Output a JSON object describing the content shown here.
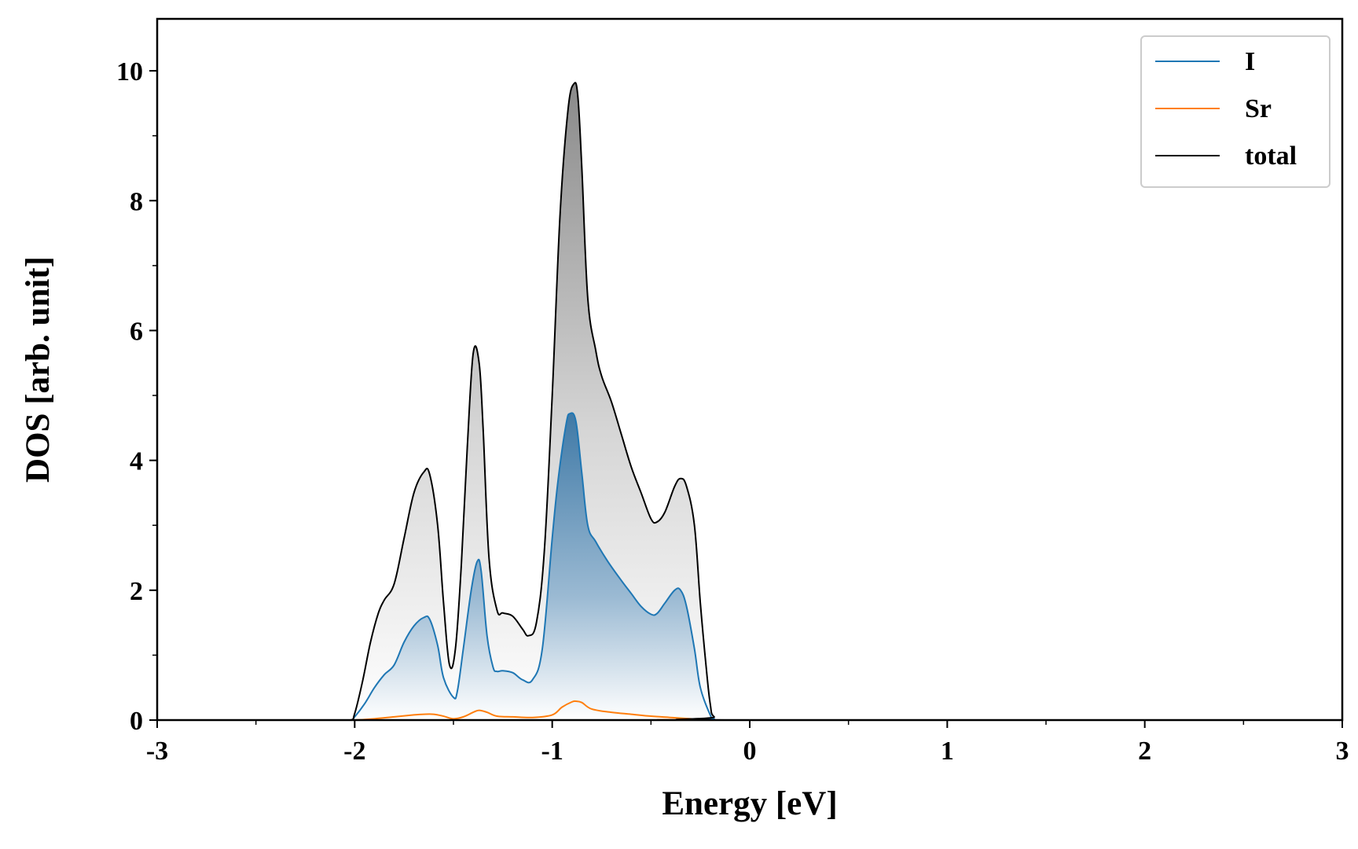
{
  "chart_data": {
    "type": "area",
    "title": "",
    "xlabel": "Energy [eV]",
    "ylabel": "DOS [arb. unit]",
    "xlim": [
      -3,
      3
    ],
    "ylim": [
      0,
      10.8
    ],
    "xticks": [
      -3,
      -2,
      -1,
      0,
      1,
      2,
      3
    ],
    "xtick_labels": [
      "-3",
      "-2",
      "-1",
      "0",
      "1",
      "2",
      "3"
    ],
    "yticks": [
      0,
      2,
      4,
      6,
      8,
      10
    ],
    "ytick_labels": [
      "0",
      "2",
      "4",
      "6",
      "8",
      "10"
    ],
    "grid": false,
    "legend_position": "top-right",
    "series": [
      {
        "name": "I",
        "color": "#1f77b4",
        "fill": "blue-gradient",
        "x": [
          -2.1,
          -2.02,
          -2.0,
          -1.95,
          -1.9,
          -1.85,
          -1.8,
          -1.75,
          -1.7,
          -1.65,
          -1.62,
          -1.58,
          -1.55,
          -1.5,
          -1.48,
          -1.45,
          -1.41,
          -1.38,
          -1.36,
          -1.33,
          -1.3,
          -1.28,
          -1.25,
          -1.2,
          -1.15,
          -1.1,
          -1.05,
          -1.0,
          -0.97,
          -0.93,
          -0.91,
          -0.88,
          -0.85,
          -0.82,
          -0.78,
          -0.72,
          -0.65,
          -0.6,
          -0.55,
          -0.5,
          -0.47,
          -0.43,
          -0.38,
          -0.35,
          -0.32,
          -0.28,
          -0.25,
          -0.2,
          -0.18,
          -0.1,
          3.0
        ],
        "y": [
          0,
          0,
          0.05,
          0.25,
          0.5,
          0.7,
          0.85,
          1.2,
          1.45,
          1.58,
          1.55,
          1.15,
          0.65,
          0.35,
          0.45,
          1.1,
          2.0,
          2.44,
          2.3,
          1.3,
          0.82,
          0.75,
          0.76,
          0.73,
          0.62,
          0.62,
          1.1,
          2.8,
          3.7,
          4.55,
          4.72,
          4.6,
          3.8,
          3.0,
          2.75,
          2.45,
          2.15,
          1.95,
          1.75,
          1.63,
          1.64,
          1.8,
          2.0,
          2.0,
          1.75,
          1.1,
          0.5,
          0.08,
          0.02,
          0,
          0
        ]
      },
      {
        "name": "Sr",
        "color": "#ff7f0e",
        "x": [
          -2.1,
          -2.0,
          -1.9,
          -1.8,
          -1.7,
          -1.65,
          -1.6,
          -1.55,
          -1.5,
          -1.45,
          -1.4,
          -1.37,
          -1.33,
          -1.28,
          -1.2,
          -1.1,
          -1.0,
          -0.95,
          -0.9,
          -0.88,
          -0.85,
          -0.8,
          -0.7,
          -0.6,
          -0.5,
          -0.4,
          -0.3,
          -0.25,
          -0.2,
          3.0
        ],
        "y": [
          0,
          0,
          0.02,
          0.05,
          0.08,
          0.09,
          0.09,
          0.06,
          0.02,
          0.05,
          0.12,
          0.15,
          0.12,
          0.06,
          0.05,
          0.04,
          0.08,
          0.2,
          0.28,
          0.29,
          0.27,
          0.17,
          0.12,
          0.09,
          0.06,
          0.04,
          0.02,
          0.01,
          0,
          0
        ]
      },
      {
        "name": "total",
        "color": "#000000",
        "fill": "gray-gradient",
        "x": [
          -2.1,
          -2.02,
          -2.0,
          -1.96,
          -1.92,
          -1.88,
          -1.85,
          -1.8,
          -1.75,
          -1.7,
          -1.65,
          -1.62,
          -1.58,
          -1.55,
          -1.52,
          -1.49,
          -1.46,
          -1.43,
          -1.4,
          -1.37,
          -1.35,
          -1.32,
          -1.28,
          -1.25,
          -1.2,
          -1.15,
          -1.12,
          -1.08,
          -1.04,
          -1.0,
          -0.96,
          -0.92,
          -0.89,
          -0.87,
          -0.85,
          -0.82,
          -0.78,
          -0.75,
          -0.7,
          -0.65,
          -0.6,
          -0.55,
          -0.5,
          -0.47,
          -0.43,
          -0.38,
          -0.35,
          -0.32,
          -0.28,
          -0.25,
          -0.22,
          -0.2,
          -0.18,
          -0.1,
          3.0
        ],
        "y": [
          0,
          0,
          0.1,
          0.6,
          1.2,
          1.65,
          1.85,
          2.1,
          2.8,
          3.5,
          3.82,
          3.78,
          3.0,
          1.8,
          0.85,
          1.1,
          2.4,
          4.2,
          5.65,
          5.5,
          4.5,
          2.5,
          1.7,
          1.65,
          1.6,
          1.4,
          1.3,
          1.5,
          2.6,
          5.0,
          7.8,
          9.4,
          9.8,
          9.6,
          8.5,
          6.5,
          5.7,
          5.3,
          4.9,
          4.4,
          3.9,
          3.5,
          3.1,
          3.05,
          3.2,
          3.6,
          3.72,
          3.6,
          3.0,
          1.8,
          0.8,
          0.25,
          0.05,
          0,
          0
        ]
      }
    ]
  }
}
